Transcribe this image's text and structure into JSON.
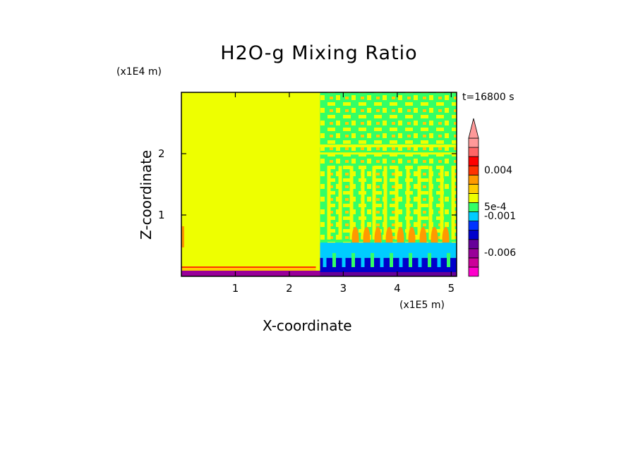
{
  "chart_data": {
    "type": "heatmap",
    "title": "H2O-g Mixing Ratio",
    "xlabel": "X-coordinate",
    "ylabel": "Z-coordinate",
    "x_multiplier": "(x1E5 m)",
    "y_multiplier": "(x1E4 m)",
    "time_label": "t=16800 s",
    "xlim": [
      0,
      5.1
    ],
    "ylim": [
      0,
      3.0
    ],
    "x_ticks": [
      {
        "v": 1,
        "l": "1"
      },
      {
        "v": 2,
        "l": "2"
      },
      {
        "v": 3,
        "l": "3"
      },
      {
        "v": 4,
        "l": "4"
      },
      {
        "v": 5,
        "l": "5"
      }
    ],
    "y_ticks": [
      {
        "v": 1,
        "l": "1"
      },
      {
        "v": 2,
        "l": "2"
      }
    ],
    "colorbar": {
      "colors": [
        "#ff00cc",
        "#cc0099",
        "#990099",
        "#660099",
        "#0000cc",
        "#0033ff",
        "#00ccff",
        "#33ff66",
        "#eeff00",
        "#ffcc00",
        "#ff9900",
        "#ff3300",
        "#ff0000",
        "#ff6666",
        "#ff9999"
      ],
      "labels": [
        "-0.006",
        "-0.001",
        "5e-4",
        "0.004"
      ],
      "label_positions": [
        2.5,
        6.5,
        7.5,
        11.5
      ],
      "extend": "max"
    }
  }
}
